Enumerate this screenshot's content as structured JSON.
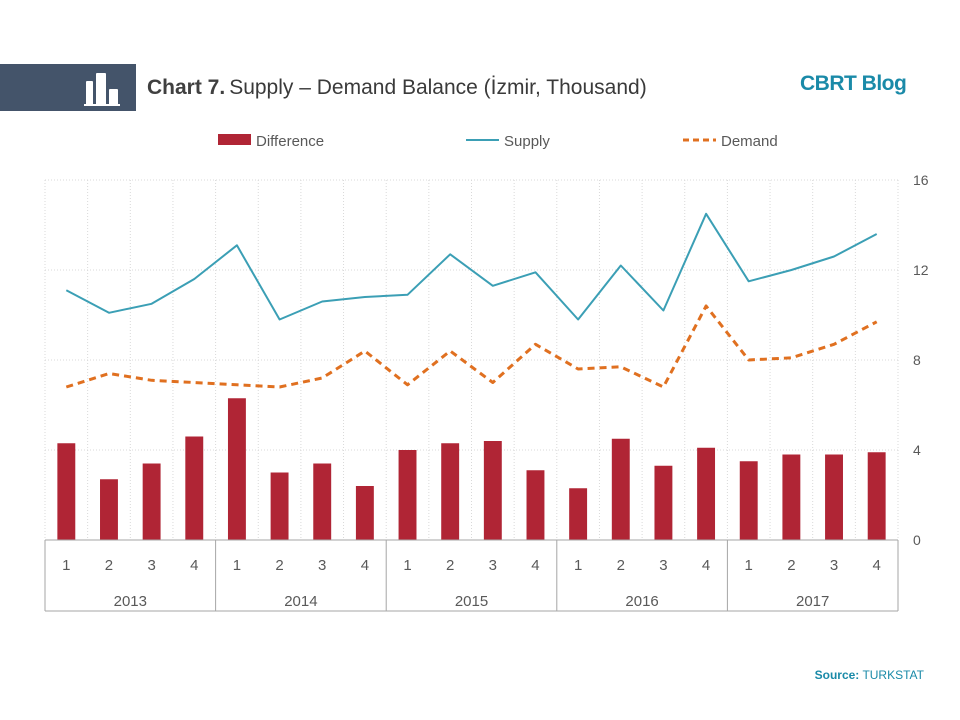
{
  "header": {
    "chart_number": "Chart 7.",
    "chart_title": "Supply – Demand Balance (İzmir, Thousand)",
    "brand": "CBRT Blog",
    "band_color": "#44546a"
  },
  "footer": {
    "source_label": "Source:",
    "source_value": "TURKSTAT"
  },
  "chart_data": {
    "type": "bar",
    "title": "Supply – Demand Balance (İzmir, Thousand)",
    "xlabel": "",
    "ylabel": "",
    "ylim": [
      0,
      16
    ],
    "yticks": [
      "0",
      "4",
      "8",
      "12",
      "16"
    ],
    "y_axis_side": "right",
    "grid": "dotted",
    "legend_position": "top",
    "quarters": [
      "1",
      "2",
      "3",
      "4",
      "1",
      "2",
      "3",
      "4",
      "1",
      "2",
      "3",
      "4",
      "1",
      "2",
      "3",
      "4",
      "1",
      "2",
      "3",
      "4"
    ],
    "years": [
      "2013",
      "2014",
      "2015",
      "2016",
      "2017"
    ],
    "series": [
      {
        "name": "Difference",
        "kind": "bar",
        "color": "#b02535",
        "values": [
          4.3,
          2.7,
          3.4,
          4.6,
          6.3,
          3.0,
          3.4,
          2.4,
          4.0,
          4.3,
          4.4,
          3.1,
          2.3,
          4.5,
          3.3,
          4.1,
          3.5,
          3.8,
          3.8,
          3.9
        ]
      },
      {
        "name": "Supply",
        "kind": "line",
        "color": "#3b9fb5",
        "values": [
          11.1,
          10.1,
          10.5,
          11.6,
          13.1,
          9.8,
          10.6,
          10.8,
          10.9,
          12.7,
          11.3,
          11.9,
          9.8,
          12.2,
          10.2,
          14.5,
          11.5,
          12.0,
          12.6,
          13.6
        ]
      },
      {
        "name": "Demand",
        "kind": "line-dashed",
        "color": "#e07020",
        "values": [
          6.8,
          7.4,
          7.1,
          7.0,
          6.9,
          6.8,
          7.2,
          8.4,
          6.9,
          8.4,
          7.0,
          8.7,
          7.6,
          7.7,
          6.8,
          10.4,
          8.0,
          8.1,
          8.7,
          9.7
        ]
      }
    ]
  }
}
